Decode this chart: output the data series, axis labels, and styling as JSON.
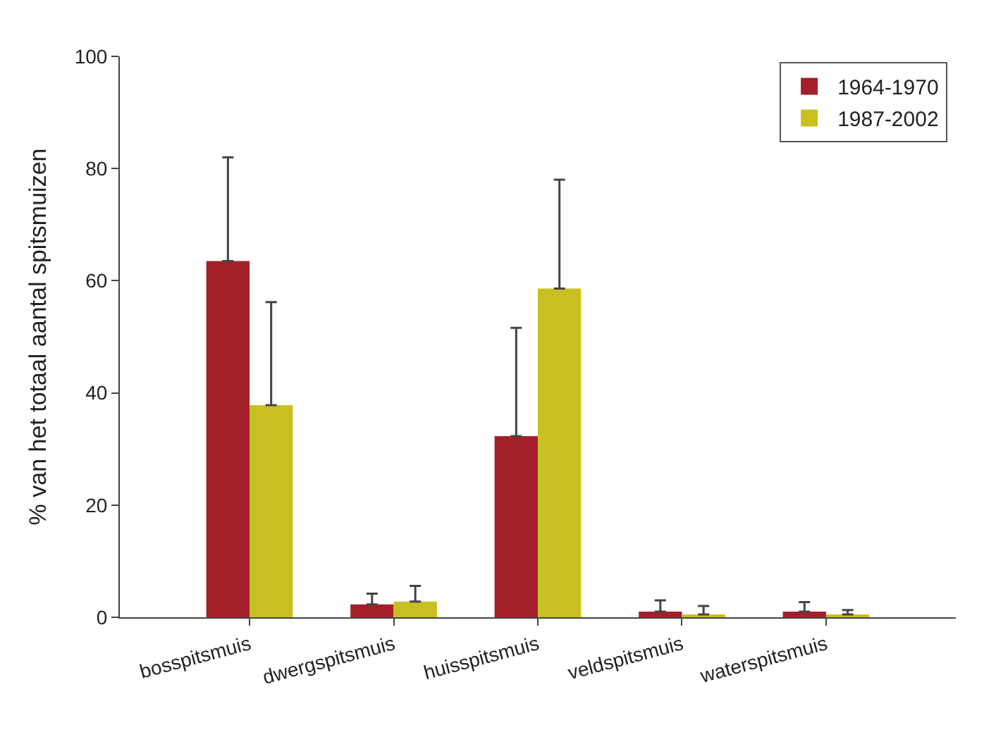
{
  "chart_data": {
    "type": "bar",
    "ylabel": "% van het totaal aantal spitsmuizen",
    "categories": [
      "bosspitsmuis",
      "dwergspitsmuis",
      "huisspitsmuis",
      "veldspitsmuis",
      "waterspitsmuis"
    ],
    "series": [
      {
        "name": "1964-1970",
        "color": "#a3202a",
        "values": [
          63.5,
          2.3,
          32.3,
          1,
          1
        ],
        "errors": [
          [
            63.5,
            82
          ],
          [
            2.3,
            4.2
          ],
          [
            32.3,
            51.6
          ],
          [
            1,
            3
          ],
          [
            1,
            2.7
          ]
        ]
      },
      {
        "name": "1987-2002",
        "color": "#c8c020",
        "values": [
          37.8,
          2.8,
          58.6,
          0.5,
          0.5
        ],
        "errors": [
          [
            37.8,
            56.2
          ],
          [
            2.8,
            5.6
          ],
          [
            58.6,
            78
          ],
          [
            0.5,
            2
          ],
          [
            0.5,
            1.3
          ]
        ]
      }
    ],
    "ylim": [
      0,
      100
    ],
    "yticks": [
      0,
      20,
      40,
      60,
      80,
      100
    ],
    "legend": "top right"
  }
}
